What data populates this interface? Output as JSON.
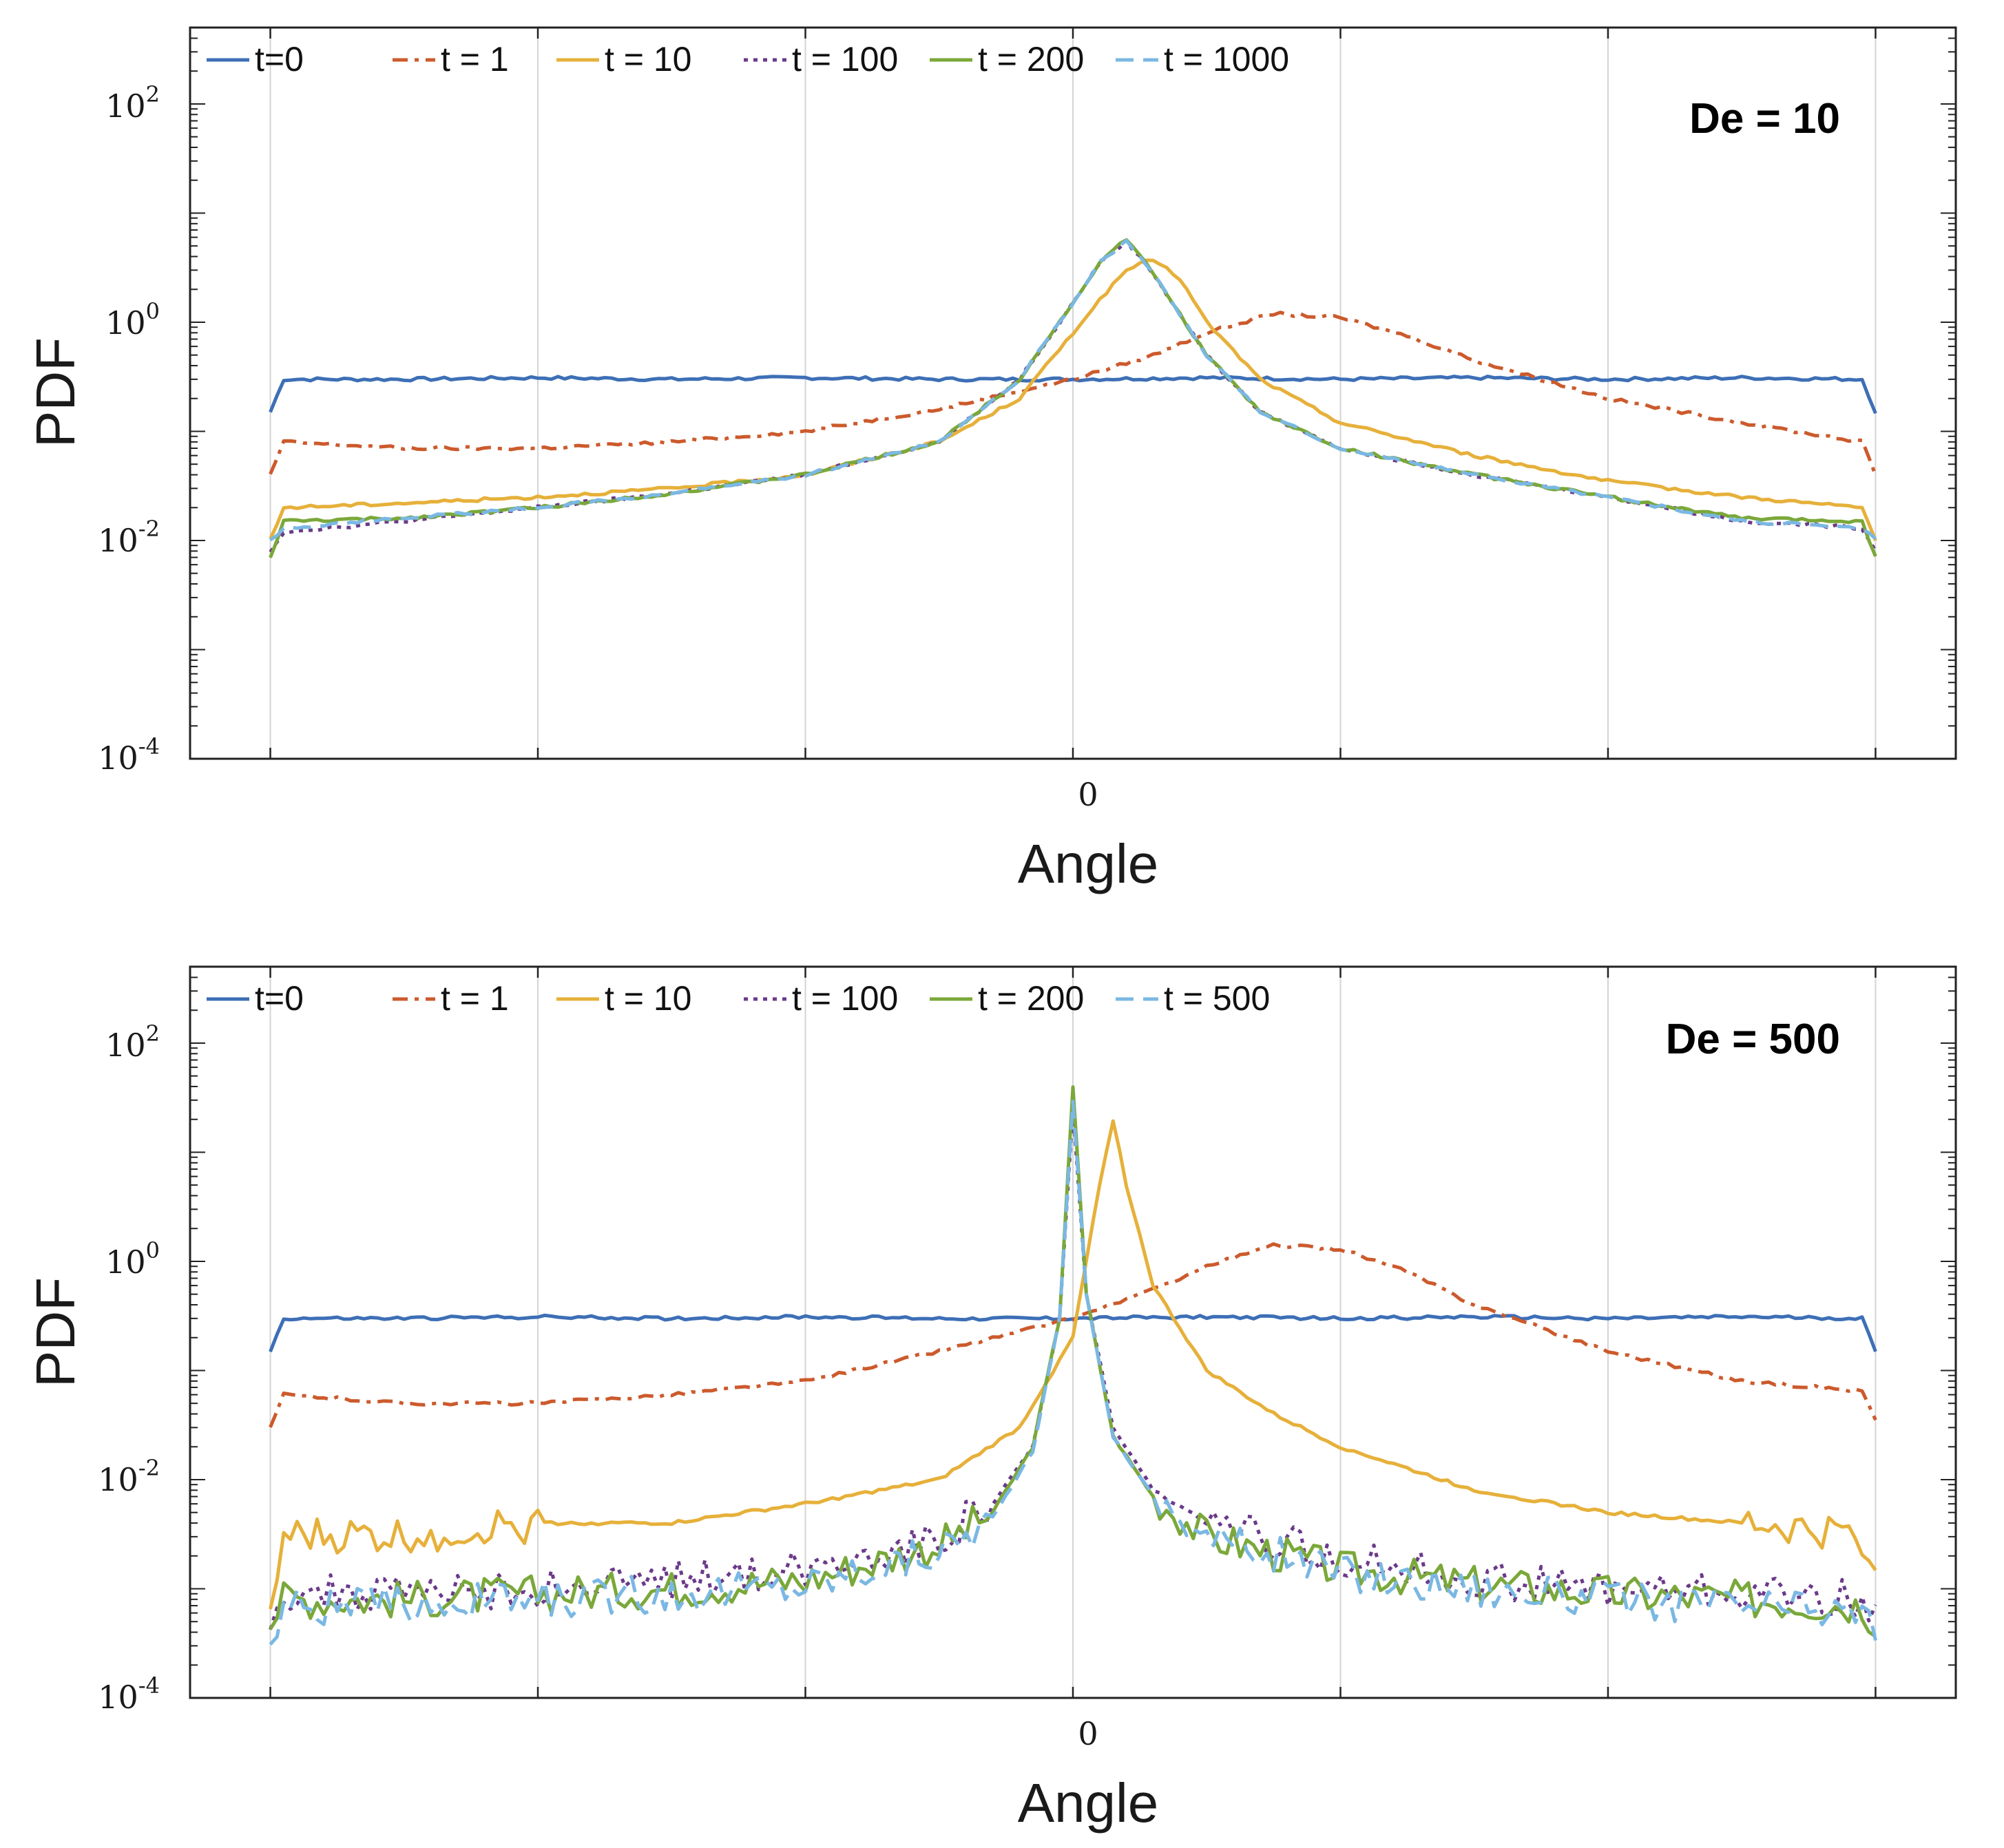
{
  "chart_data": [
    {
      "type": "line",
      "panel": "top",
      "annotation": "De = 10",
      "xlabel": "Angle",
      "ylabel": "PDF",
      "xtick_labels": [
        "0"
      ],
      "xlim": [
        -3.3,
        3.3
      ],
      "ylim_log10": [
        -4,
        2.7
      ],
      "yscale": "log",
      "ytick_exponents": [
        "2",
        "0",
        "-2",
        "-4"
      ],
      "ytick_base": "10",
      "grid": "vertical",
      "legend_position": "top-left",
      "series": [
        {
          "name": "t=0",
          "color": "#3d6fb6",
          "style": "solid",
          "x": [
            -3.0,
            -2.95,
            -2.5,
            -2.0,
            -1.5,
            -1.0,
            -0.5,
            0.0,
            0.5,
            1.0,
            1.5,
            2.0,
            2.5,
            2.95,
            3.0
          ],
          "y": [
            0.15,
            0.3,
            0.3,
            0.31,
            0.3,
            0.31,
            0.3,
            0.3,
            0.31,
            0.3,
            0.31,
            0.3,
            0.31,
            0.3,
            0.15
          ]
        },
        {
          "name": "t = 1",
          "color": "#cc5a2c",
          "style": "dashdot",
          "x": [
            -3.0,
            -2.95,
            -2.5,
            -2.0,
            -1.5,
            -1.0,
            -0.5,
            0.0,
            0.3,
            0.5,
            0.75,
            1.0,
            1.25,
            1.5,
            2.0,
            2.5,
            2.95,
            3.0
          ],
          "y": [
            0.04,
            0.08,
            0.07,
            0.07,
            0.08,
            0.1,
            0.16,
            0.3,
            0.5,
            0.8,
            1.2,
            1.1,
            0.75,
            0.45,
            0.2,
            0.12,
            0.08,
            0.04
          ]
        },
        {
          "name": "t = 10",
          "color": "#e6b03a",
          "style": "solid",
          "x": [
            -3.0,
            -2.95,
            -2.5,
            -2.0,
            -1.5,
            -1.0,
            -0.5,
            -0.2,
            0.0,
            0.1,
            0.2,
            0.3,
            0.4,
            0.5,
            0.7,
            1.0,
            1.5,
            2.0,
            2.5,
            2.95,
            3.0
          ],
          "y": [
            0.01,
            0.02,
            0.022,
            0.025,
            0.03,
            0.04,
            0.08,
            0.2,
            0.8,
            1.6,
            3.0,
            3.8,
            2.5,
            1.0,
            0.3,
            0.12,
            0.06,
            0.035,
            0.025,
            0.02,
            0.01
          ]
        },
        {
          "name": "t = 100",
          "color": "#6b3a8a",
          "style": "dotted",
          "x": [
            -3.0,
            -2.95,
            -2.5,
            -2.0,
            -1.5,
            -1.0,
            -0.5,
            -0.2,
            0.0,
            0.1,
            0.2,
            0.3,
            0.5,
            0.7,
            1.0,
            1.5,
            2.0,
            2.5,
            2.95,
            3.0
          ],
          "y": [
            0.008,
            0.012,
            0.015,
            0.02,
            0.027,
            0.04,
            0.08,
            0.3,
            1.5,
            3.5,
            5.5,
            2.8,
            0.5,
            0.15,
            0.07,
            0.04,
            0.025,
            0.015,
            0.013,
            0.008
          ]
        },
        {
          "name": "t = 200",
          "color": "#7aa83a",
          "style": "solid",
          "x": [
            -3.0,
            -2.95,
            -2.5,
            -2.0,
            -1.5,
            -1.0,
            -0.5,
            -0.2,
            0.0,
            0.1,
            0.2,
            0.3,
            0.5,
            0.7,
            1.0,
            1.5,
            2.0,
            2.5,
            2.95,
            3.0
          ],
          "y": [
            0.007,
            0.015,
            0.016,
            0.02,
            0.027,
            0.04,
            0.08,
            0.3,
            1.5,
            3.5,
            5.8,
            2.8,
            0.5,
            0.15,
            0.07,
            0.04,
            0.025,
            0.016,
            0.015,
            0.007
          ]
        },
        {
          "name": "t = 1000",
          "color": "#7ab8e3",
          "style": "dashed",
          "x": [
            -3.0,
            -2.95,
            -2.5,
            -2.0,
            -1.5,
            -1.0,
            -0.5,
            -0.2,
            0.0,
            0.1,
            0.2,
            0.3,
            0.5,
            0.7,
            1.0,
            1.5,
            2.0,
            2.5,
            2.95,
            3.0
          ],
          "y": [
            0.01,
            0.013,
            0.016,
            0.02,
            0.027,
            0.04,
            0.08,
            0.3,
            1.5,
            3.5,
            5.6,
            2.8,
            0.5,
            0.15,
            0.07,
            0.04,
            0.025,
            0.015,
            0.013,
            0.01
          ]
        }
      ]
    },
    {
      "type": "line",
      "panel": "bottom",
      "annotation": "De = 500",
      "xlabel": "Angle",
      "ylabel": "PDF",
      "xtick_labels": [
        "0"
      ],
      "xlim": [
        -3.3,
        3.3
      ],
      "ylim_log10": [
        -4,
        2.7
      ],
      "yscale": "log",
      "ytick_exponents": [
        "2",
        "0",
        "-2",
        "-4"
      ],
      "ytick_base": "10",
      "grid": "vertical",
      "legend_position": "top-left",
      "series": [
        {
          "name": "t=0",
          "color": "#3d6fb6",
          "style": "solid",
          "x": [
            -3.0,
            -2.95,
            -2.5,
            -2.0,
            -1.5,
            -1.0,
            -0.5,
            0.0,
            0.5,
            1.0,
            1.5,
            2.0,
            2.5,
            2.95,
            3.0
          ],
          "y": [
            0.15,
            0.3,
            0.3,
            0.31,
            0.3,
            0.31,
            0.3,
            0.3,
            0.31,
            0.3,
            0.31,
            0.3,
            0.31,
            0.3,
            0.15
          ]
        },
        {
          "name": "t = 1",
          "color": "#cc5a2c",
          "style": "dashdot",
          "x": [
            -3.0,
            -2.95,
            -2.5,
            -2.0,
            -1.5,
            -1.0,
            -0.5,
            0.0,
            0.3,
            0.5,
            0.75,
            1.0,
            1.25,
            1.5,
            2.0,
            2.5,
            2.95,
            3.0
          ],
          "y": [
            0.03,
            0.06,
            0.05,
            0.05,
            0.06,
            0.08,
            0.15,
            0.3,
            0.55,
            0.9,
            1.4,
            1.3,
            0.8,
            0.4,
            0.15,
            0.08,
            0.065,
            0.035
          ]
        },
        {
          "name": "t = 10",
          "color": "#e6b03a",
          "style": "solid",
          "x": [
            -3.0,
            -2.95,
            -2.5,
            -2.0,
            -1.5,
            -1.0,
            -0.5,
            -0.2,
            0.0,
            0.1,
            0.15,
            0.2,
            0.3,
            0.5,
            0.75,
            1.0,
            1.5,
            2.0,
            2.5,
            2.95,
            3.0
          ],
          "y": [
            0.0005,
            0.003,
            0.003,
            0.004,
            0.004,
            0.006,
            0.01,
            0.03,
            0.2,
            5.0,
            20.0,
            5.0,
            0.6,
            0.1,
            0.04,
            0.02,
            0.008,
            0.005,
            0.004,
            0.003,
            0.0012
          ]
        },
        {
          "name": "t = 100",
          "color": "#6b3a8a",
          "style": "dotted",
          "x": [
            -3.0,
            -2.95,
            -2.5,
            -2.0,
            -1.5,
            -1.0,
            -0.5,
            -0.3,
            -0.15,
            -0.05,
            0.0,
            0.05,
            0.15,
            0.3,
            0.5,
            1.0,
            1.5,
            2.0,
            2.5,
            2.95,
            3.0
          ],
          "y": [
            0.0006,
            0.0009,
            0.0009,
            0.001,
            0.0012,
            0.0015,
            0.003,
            0.006,
            0.02,
            0.3,
            25.0,
            0.5,
            0.03,
            0.008,
            0.004,
            0.002,
            0.0012,
            0.001,
            0.0009,
            0.0008,
            0.0005
          ]
        },
        {
          "name": "t = 200",
          "color": "#7aa83a",
          "style": "solid",
          "x": [
            -3.0,
            -2.95,
            -2.5,
            -2.0,
            -1.5,
            -1.0,
            -0.5,
            -0.3,
            -0.15,
            -0.05,
            0.0,
            0.05,
            0.15,
            0.3,
            0.5,
            1.0,
            1.5,
            2.0,
            2.5,
            2.95,
            3.0
          ],
          "y": [
            0.0005,
            0.0008,
            0.0008,
            0.0009,
            0.001,
            0.0012,
            0.0025,
            0.005,
            0.02,
            0.3,
            40.0,
            0.5,
            0.025,
            0.007,
            0.003,
            0.0015,
            0.0011,
            0.0009,
            0.0008,
            0.0007,
            0.0005
          ]
        },
        {
          "name": "t = 500",
          "color": "#7ab8e3",
          "style": "dashed",
          "x": [
            -3.0,
            -2.95,
            -2.5,
            -2.0,
            -1.5,
            -1.0,
            -0.5,
            -0.3,
            -0.15,
            -0.05,
            0.0,
            0.05,
            0.15,
            0.3,
            0.5,
            1.0,
            1.5,
            2.0,
            2.5,
            2.95,
            3.0
          ],
          "y": [
            0.0003,
            0.0007,
            0.0007,
            0.0008,
            0.0009,
            0.0011,
            0.0022,
            0.0045,
            0.018,
            0.3,
            30.0,
            0.5,
            0.025,
            0.007,
            0.003,
            0.0014,
            0.001,
            0.0008,
            0.0007,
            0.0006,
            0.0004
          ]
        }
      ]
    }
  ]
}
